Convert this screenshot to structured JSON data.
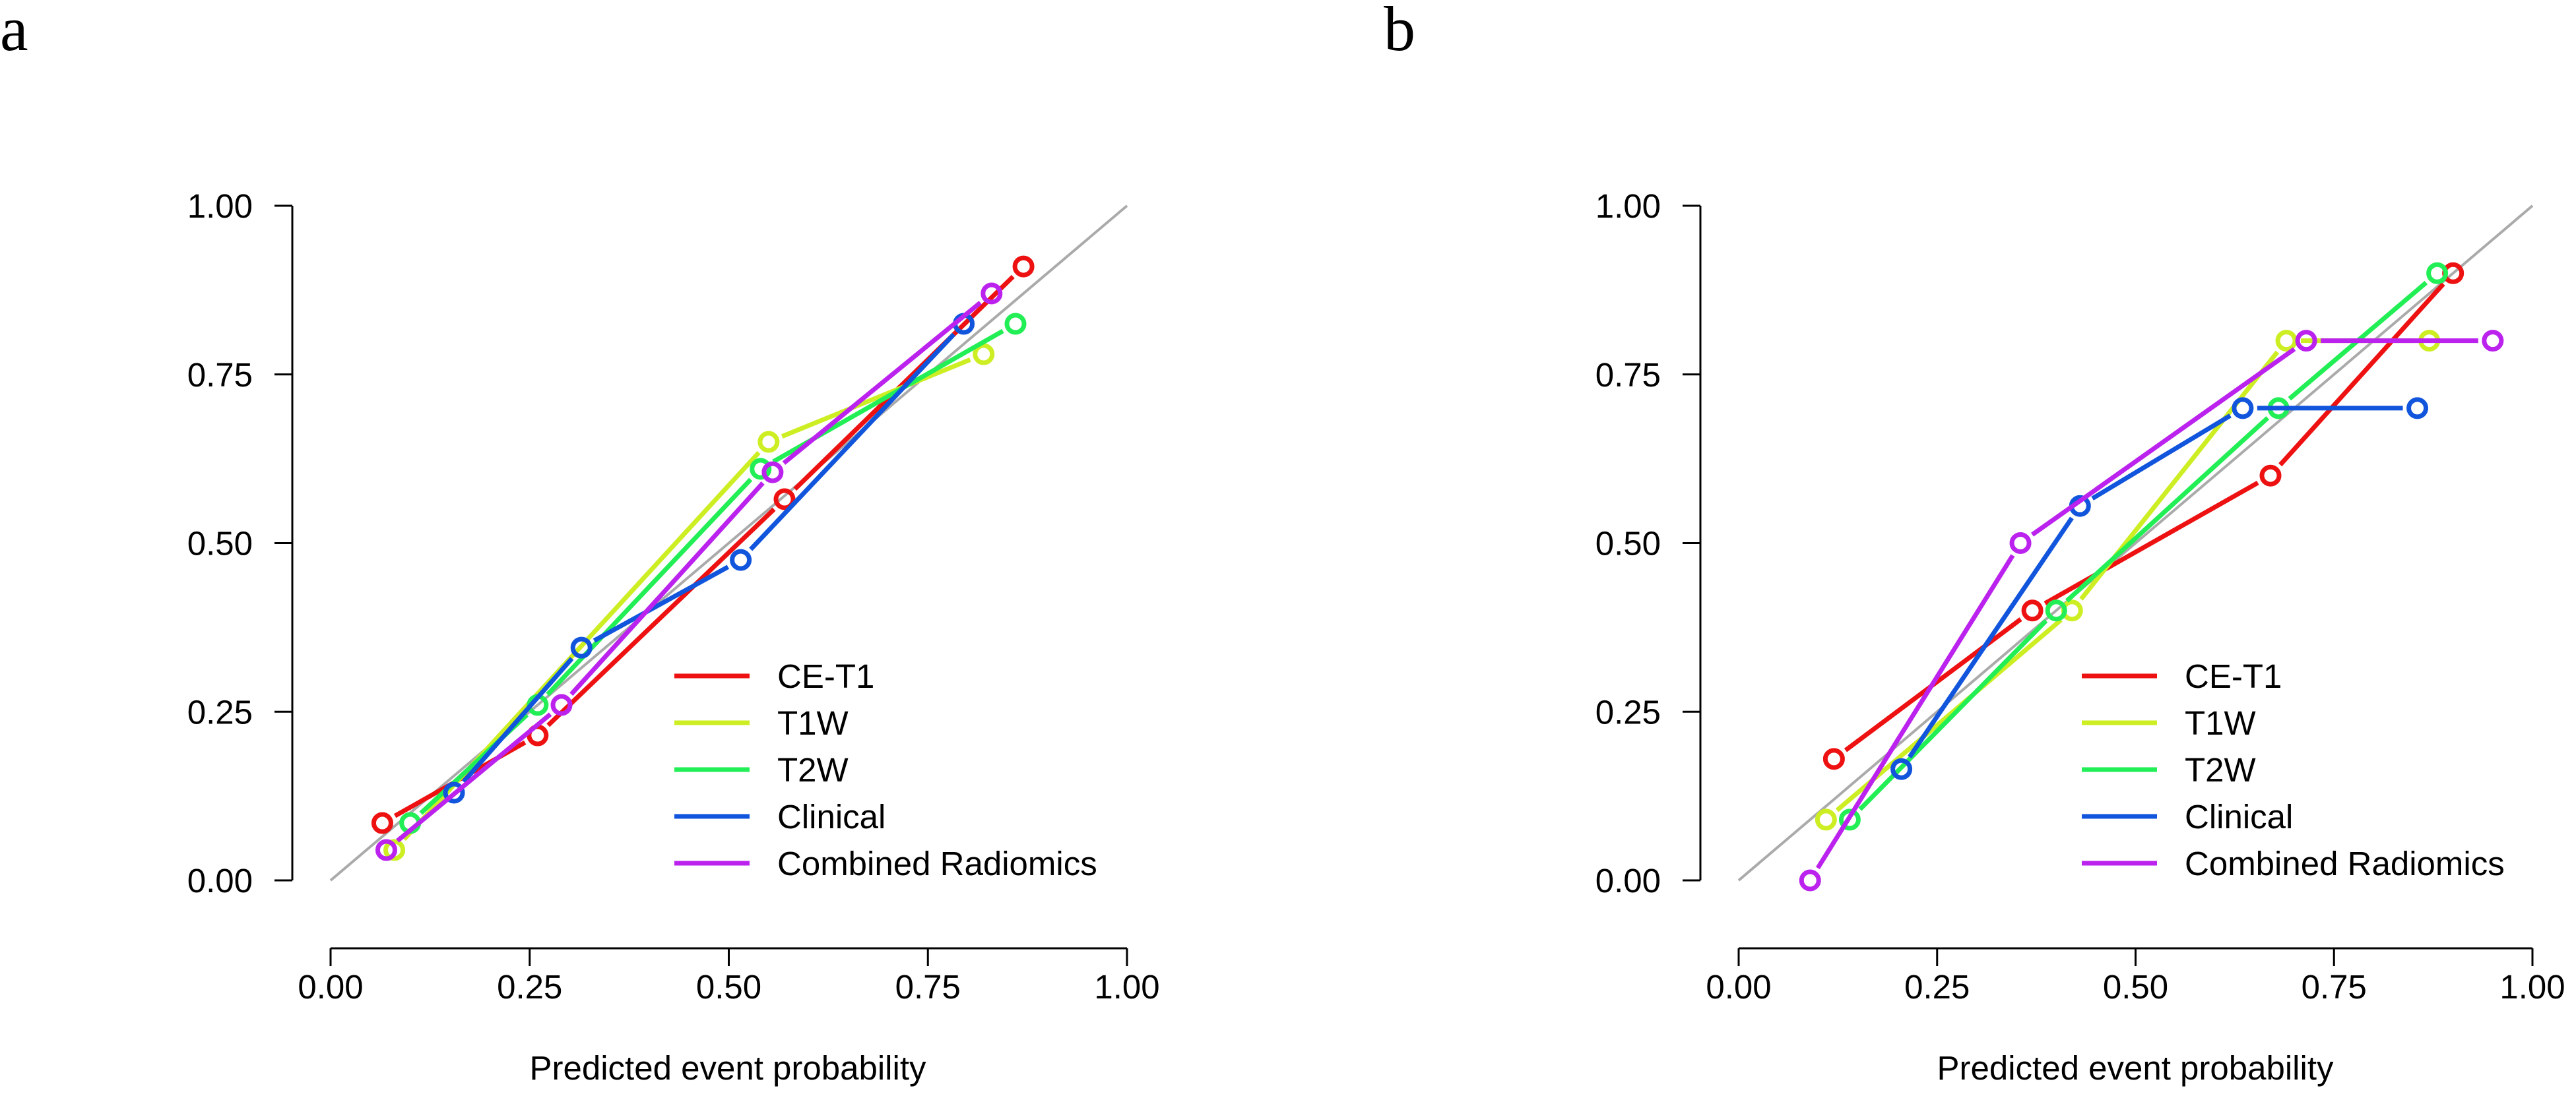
{
  "colors": {
    "CE-T1": "#ee1111",
    "T1W": "#ccee22",
    "T2W": "#22ee55",
    "Clinical": "#1155dd",
    "Combined Radiomics": "#bb22ee",
    "diagonal": "#aaaaaa",
    "axis": "#000000"
  },
  "chart_data": [
    {
      "panel": "a",
      "type": "line",
      "xlabel": "Predicted event probability",
      "ylabel": "",
      "xlim": [
        0,
        1
      ],
      "ylim": [
        0,
        1
      ],
      "x_ticks": [
        "0.00",
        "0.25",
        "0.50",
        "0.75",
        "1.00"
      ],
      "y_ticks": [
        "0.00",
        "0.25",
        "0.50",
        "0.75",
        "1.00"
      ],
      "reference_line": "diagonal",
      "legend_position": "bottom-right",
      "series": [
        {
          "name": "CE-T1",
          "x": [
            0.065,
            0.26,
            0.57,
            0.87
          ],
          "y": [
            0.085,
            0.215,
            0.565,
            0.91
          ]
        },
        {
          "name": "T1W",
          "x": [
            0.08,
            0.55,
            0.82
          ],
          "y": [
            0.045,
            0.65,
            0.78
          ]
        },
        {
          "name": "T2W",
          "x": [
            0.1,
            0.26,
            0.54,
            0.86
          ],
          "y": [
            0.085,
            0.26,
            0.61,
            0.825
          ]
        },
        {
          "name": "Clinical",
          "x": [
            0.155,
            0.315,
            0.515,
            0.795
          ],
          "y": [
            0.13,
            0.345,
            0.475,
            0.825
          ]
        },
        {
          "name": "Combined Radiomics",
          "x": [
            0.07,
            0.29,
            0.555,
            0.83
          ],
          "y": [
            0.045,
            0.26,
            0.605,
            0.87
          ]
        }
      ]
    },
    {
      "panel": "b",
      "type": "line",
      "xlabel": "Predicted event probability",
      "ylabel": "",
      "xlim": [
        0,
        1
      ],
      "ylim": [
        0,
        1
      ],
      "x_ticks": [
        "0.00",
        "0.25",
        "0.50",
        "0.75",
        "1.00"
      ],
      "y_ticks": [
        "0.00",
        "0.25",
        "0.50",
        "0.75",
        "1.00"
      ],
      "reference_line": "diagonal",
      "legend_position": "bottom-right",
      "series": [
        {
          "name": "CE-T1",
          "x": [
            0.12,
            0.37,
            0.67,
            0.9
          ],
          "y": [
            0.18,
            0.4,
            0.6,
            0.9
          ]
        },
        {
          "name": "T1W",
          "x": [
            0.11,
            0.42,
            0.69,
            0.87
          ],
          "y": [
            0.09,
            0.4,
            0.8,
            0.8
          ]
        },
        {
          "name": "T2W",
          "x": [
            0.14,
            0.4,
            0.68,
            0.88
          ],
          "y": [
            0.09,
            0.4,
            0.7,
            0.9
          ]
        },
        {
          "name": "Clinical",
          "x": [
            0.205,
            0.43,
            0.635,
            0.855
          ],
          "y": [
            0.165,
            0.555,
            0.7,
            0.7
          ]
        },
        {
          "name": "Combined Radiomics",
          "x": [
            0.09,
            0.355,
            0.715,
            0.95
          ],
          "y": [
            0.0,
            0.5,
            0.8,
            0.8
          ]
        }
      ]
    }
  ]
}
